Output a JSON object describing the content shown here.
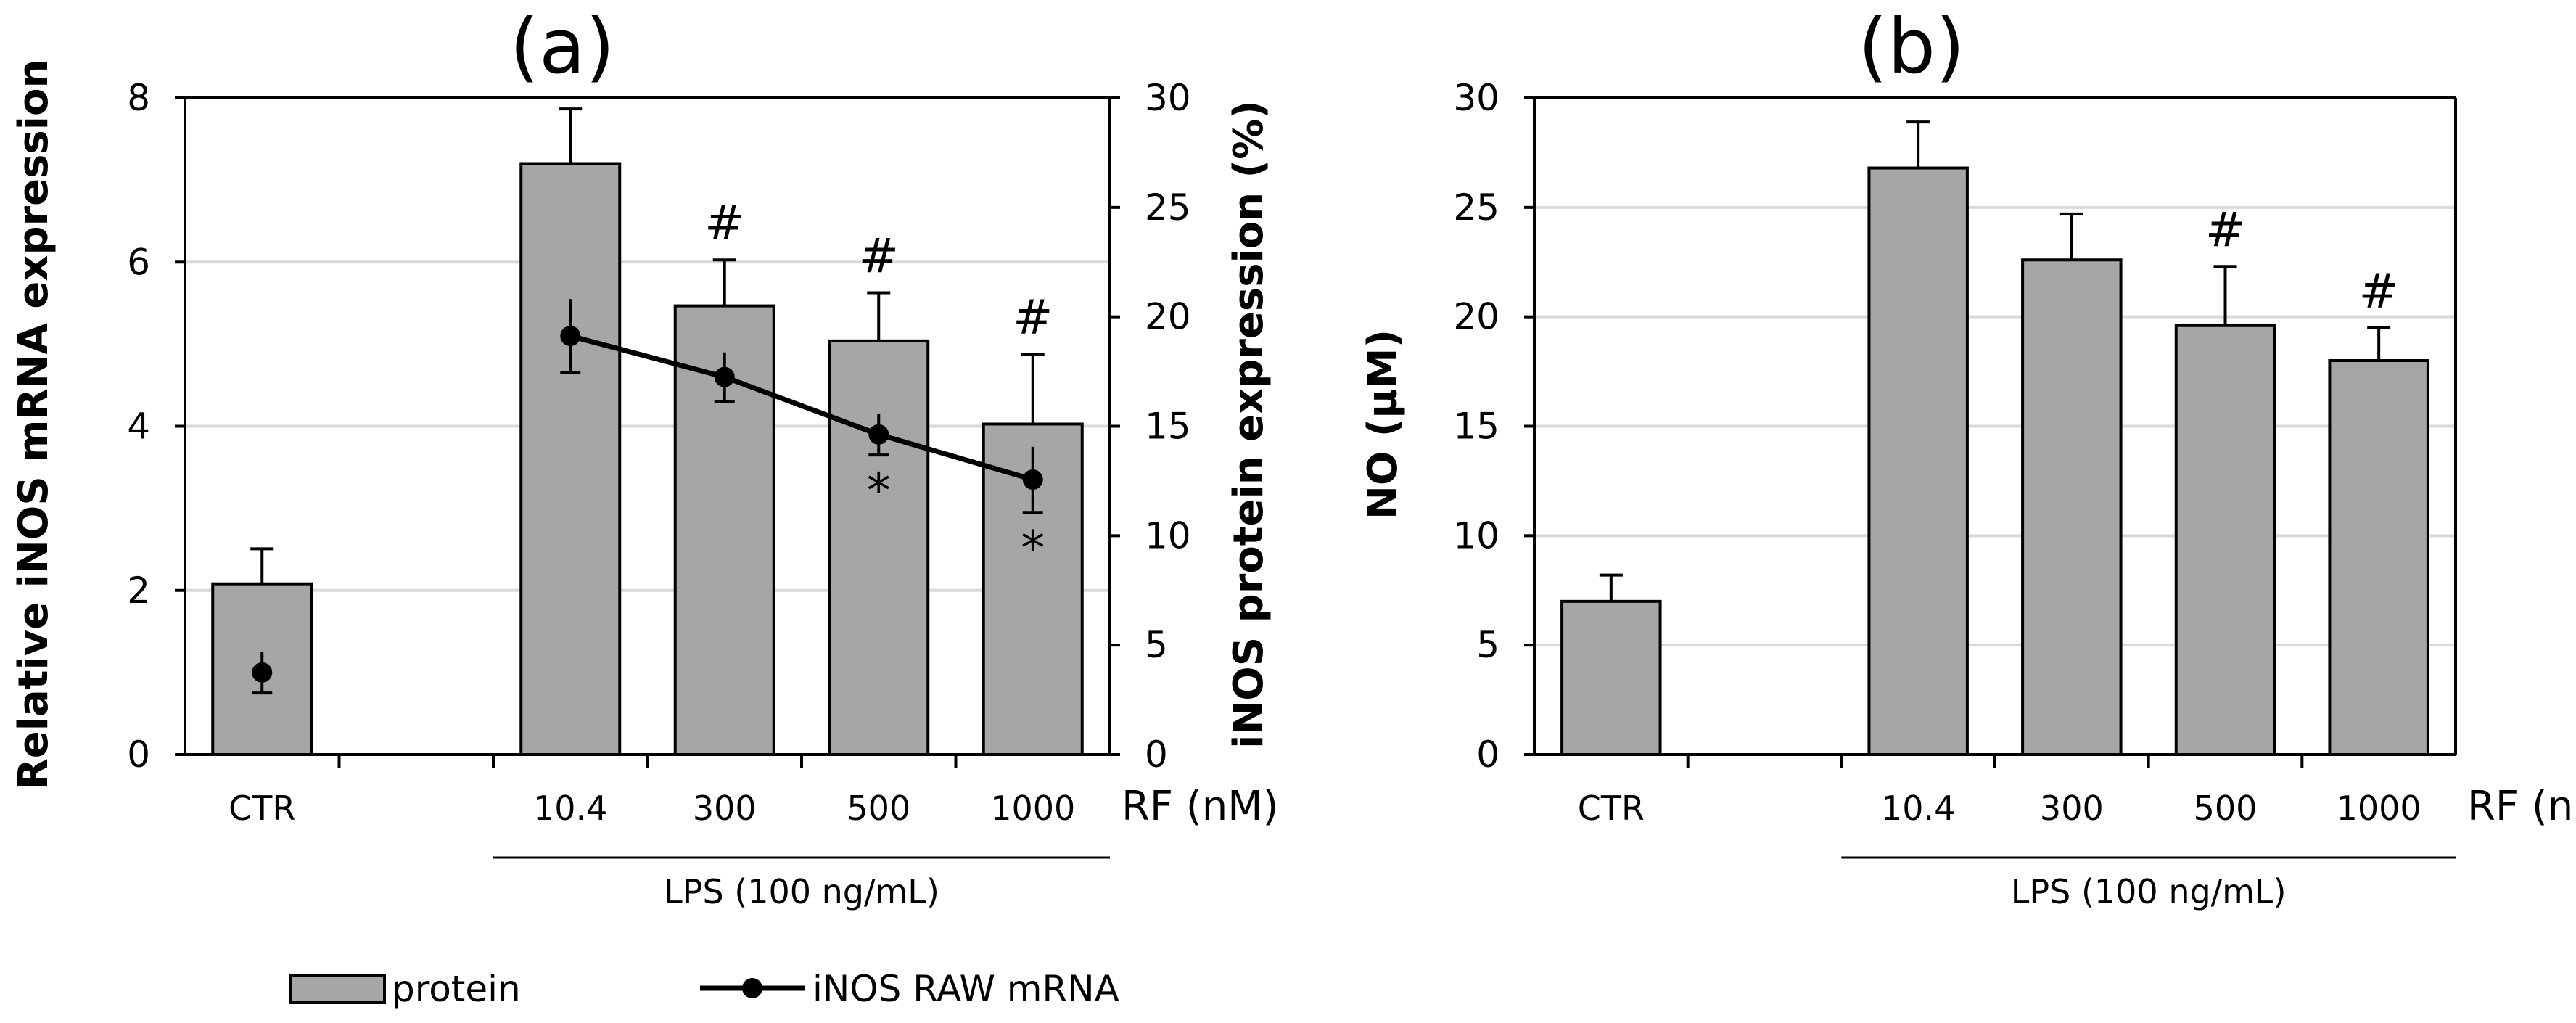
{
  "chart_data": [
    {
      "panel_label": "(a)",
      "type": "bar",
      "categories": [
        "CTR",
        "",
        "10.4",
        "300",
        "500",
        "1000"
      ],
      "unit_label": "RF (nM)",
      "group_label": "LPS (100 ng/mL)",
      "group_span": [
        "10.4",
        "1000"
      ],
      "series": [
        {
          "name": "protein",
          "type": "bar",
          "axis": "right",
          "values": [
            7.8,
            null,
            27.0,
            20.5,
            18.9,
            15.1
          ],
          "errors": [
            1.6,
            null,
            2.5,
            2.1,
            2.2,
            3.2
          ],
          "color": "#a6a6a6"
        },
        {
          "name": "iNOS RAW mRNA",
          "type": "line",
          "axis": "left",
          "values": [
            1.0,
            null,
            5.1,
            4.6,
            3.9,
            3.35
          ],
          "errors": [
            0.25,
            null,
            0.45,
            0.3,
            0.25,
            0.4
          ],
          "color": "#000000"
        }
      ],
      "y_left": {
        "label": "Relative iNOS mRNA expression",
        "min": 0,
        "max": 8,
        "ticks": [
          0,
          2,
          4,
          6,
          8
        ]
      },
      "y_right": {
        "label": "iNOS protein expression (%)",
        "min": 0,
        "max": 30,
        "ticks": [
          0,
          5,
          10,
          15,
          20,
          25,
          30
        ]
      },
      "annotations": [
        {
          "category": "300",
          "text": "#",
          "series": "protein",
          "position": "above"
        },
        {
          "category": "500",
          "text": "#",
          "series": "protein",
          "position": "above"
        },
        {
          "category": "1000",
          "text": "#",
          "series": "protein",
          "position": "above"
        },
        {
          "category": "500",
          "text": "*",
          "series": "iNOS RAW mRNA",
          "position": "below"
        },
        {
          "category": "1000",
          "text": "*",
          "series": "iNOS RAW mRNA",
          "position": "below"
        }
      ],
      "grid": true
    },
    {
      "panel_label": "(b)",
      "type": "bar",
      "categories": [
        "CTR",
        "",
        "10.4",
        "300",
        "500",
        "1000"
      ],
      "unit_label": "RF (nM)",
      "group_label": "LPS (100 ng/mL)",
      "group_span": [
        "10.4",
        "1000"
      ],
      "series": [
        {
          "name": "NO",
          "type": "bar",
          "axis": "left",
          "values": [
            7.0,
            null,
            26.8,
            22.6,
            19.6,
            18.0
          ],
          "errors": [
            1.2,
            null,
            2.1,
            2.1,
            2.7,
            1.5
          ],
          "color": "#a6a6a6"
        }
      ],
      "y_left": {
        "label": "NO (µM)",
        "min": 0,
        "max": 30,
        "ticks": [
          0,
          5,
          10,
          15,
          20,
          25,
          30
        ]
      },
      "annotations": [
        {
          "category": "500",
          "text": "#",
          "series": "NO",
          "position": "above"
        },
        {
          "category": "1000",
          "text": "#",
          "series": "NO",
          "position": "above"
        }
      ],
      "grid": true
    }
  ],
  "legend": {
    "placement": "bottom-left",
    "items": [
      {
        "label": "protein",
        "kind": "bar"
      },
      {
        "label": "iNOS RAW mRNA",
        "kind": "line"
      }
    ]
  }
}
